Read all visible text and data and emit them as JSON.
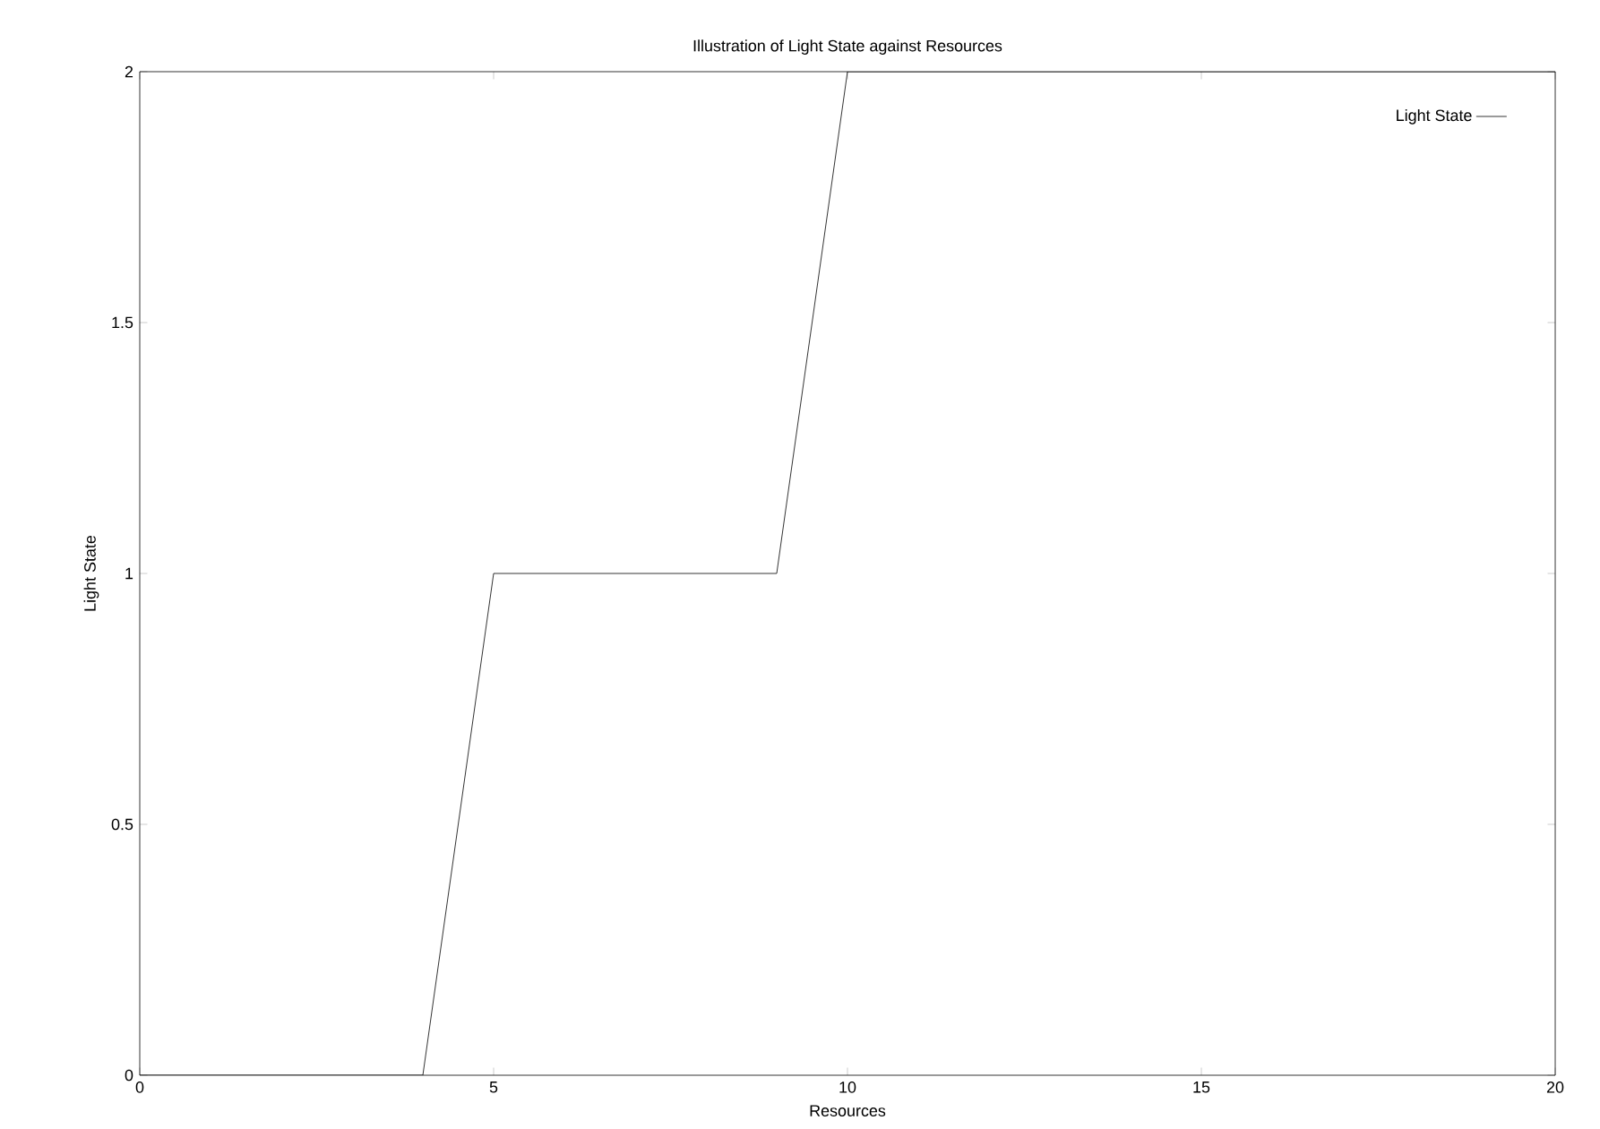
{
  "chart_data": {
    "type": "line",
    "title": "Illustration of Light State against Resources",
    "xlabel": "Resources",
    "ylabel": "Light State",
    "x": [
      0,
      4,
      5,
      9,
      10,
      20
    ],
    "series": [
      {
        "name": "Light State",
        "color": "#000000",
        "values": [
          0,
          0,
          1,
          1,
          2,
          2
        ]
      }
    ],
    "xlim": [
      0,
      20
    ],
    "ylim": [
      0,
      2
    ],
    "xticks": [
      0,
      5,
      10,
      15,
      20
    ],
    "yticks": [
      0,
      0.5,
      1,
      1.5,
      2
    ],
    "legend": "top right",
    "grid": false,
    "marker": "none",
    "line_style": "solid"
  }
}
